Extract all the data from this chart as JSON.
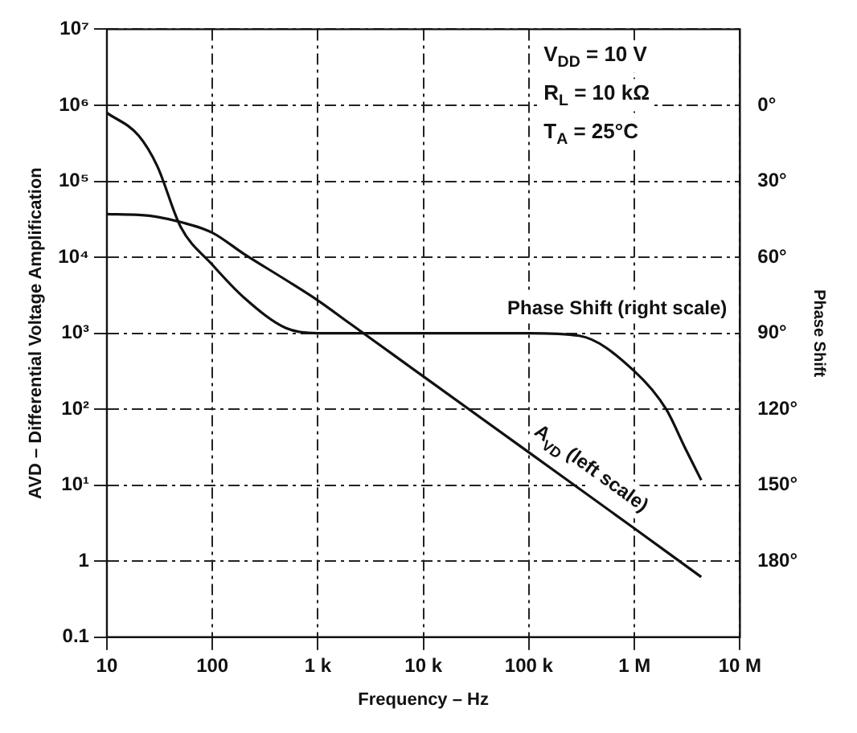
{
  "chart_data": {
    "type": "line",
    "xlabel": "Frequency – Hz",
    "ylabel": "AVD – Differential Voltage Amplification",
    "y2label": "Phase Shift",
    "log": "xy",
    "xlim": [
      10,
      10000000
    ],
    "xticks": [
      10,
      100,
      {
        "value": 1000,
        "label": "1 k"
      },
      {
        "value": 10000,
        "label": "10 k"
      },
      {
        "value": 100000,
        "label": "100 k"
      },
      {
        "value": 1000000,
        "label": "1 M"
      },
      {
        "value": 10000000,
        "label": "10 M"
      }
    ],
    "ylim": [
      0.1,
      10000000
    ],
    "yticks": [
      0.1,
      1,
      {
        "value": 10,
        "label": "10¹"
      },
      {
        "value": 100,
        "label": "10²"
      },
      {
        "value": 1000,
        "label": "10³"
      },
      {
        "value": 10000,
        "label": "10⁴"
      },
      {
        "value": 100000,
        "label": "10⁵"
      },
      {
        "value": 1000000,
        "label": "10⁶"
      },
      {
        "value": 10000000,
        "label": "10⁷"
      }
    ],
    "y2lim": [
      210,
      -30
    ],
    "y2ticks": [
      {
        "value": 0,
        "label": "0°"
      },
      {
        "value": 30,
        "label": "30°"
      },
      {
        "value": 60,
        "label": "60°"
      },
      {
        "value": 90,
        "label": "90°"
      },
      {
        "value": 120,
        "label": "120°"
      },
      {
        "value": 150,
        "label": "150°"
      },
      {
        "value": 180,
        "label": "180°"
      }
    ],
    "grid": true,
    "legend": false,
    "marker": "none",
    "line_style": "solid",
    "annotations": [
      "V$_{DD}$ = 10 V",
      "R$_{L}$ = 10 kΩ",
      "T$_{A}$ = 25°C"
    ],
    "series": [
      {
        "name": "A$_{VD}$ (left scale)",
        "color": "#111111",
        "x": [
          10,
          20,
          30,
          50,
          100,
          200,
          500,
          1000,
          2000,
          5000,
          10000,
          100000,
          1000000,
          4300000
        ],
        "values": [
          37000,
          36000,
          34000,
          29000,
          21000,
          11000,
          5000,
          2700,
          1350,
          540,
          270,
          27,
          2.7,
          0.62
        ]
      },
      {
        "name": "Phase Shift (right scale)",
        "color": "#111111",
        "axis": "y2",
        "x": [
          10,
          20,
          30,
          50,
          100,
          200,
          500,
          1000,
          10000,
          100000,
          300000,
          1000000,
          2000000,
          3000000,
          4300000
        ],
        "values": [
          3,
          12,
          24,
          48,
          63,
          76,
          88,
          90,
          90,
          90,
          91,
          105,
          120,
          135,
          148
        ]
      }
    ]
  }
}
